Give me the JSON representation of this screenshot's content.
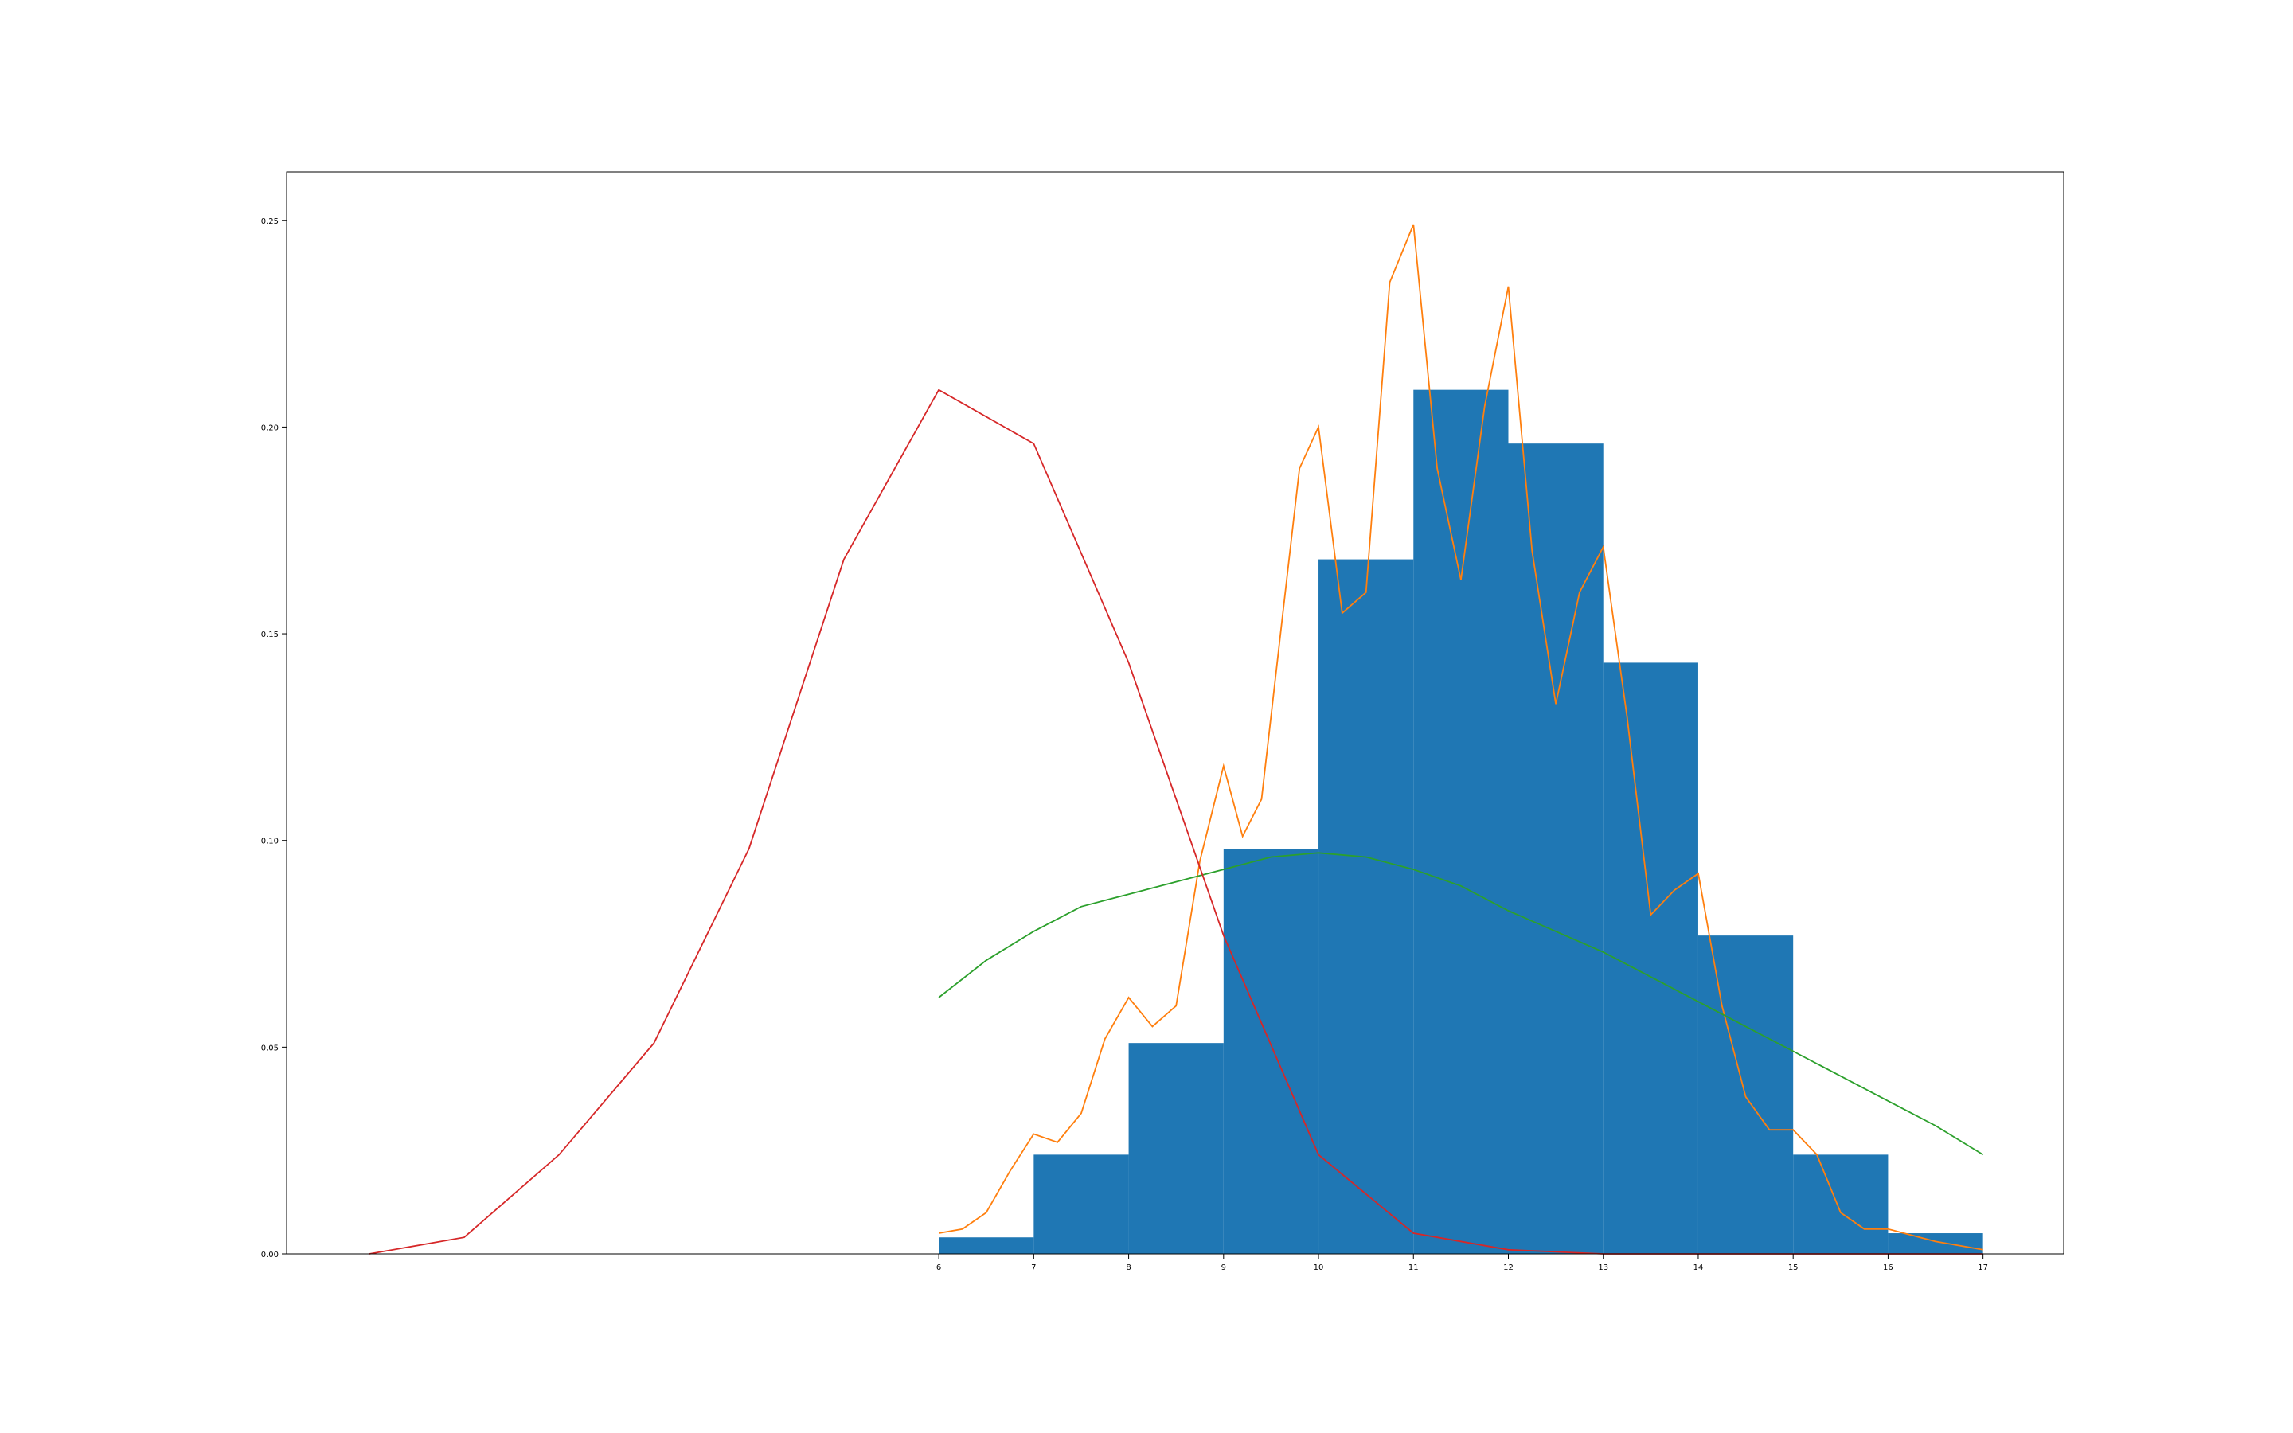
{
  "chart_data": {
    "type": "bar",
    "title": "",
    "xlabel": "",
    "ylabel": "",
    "xlim": [
      -0.87,
      17.85
    ],
    "ylim": [
      0,
      0.2617
    ],
    "grid": false,
    "x_ticks": [
      6,
      7,
      8,
      9,
      10,
      11,
      12,
      13,
      14,
      15,
      16,
      17
    ],
    "x_tick_labels": [
      "6",
      "7",
      "8",
      "9",
      "10",
      "11",
      "12",
      "13",
      "14",
      "15",
      "16",
      "17"
    ],
    "y_ticks": [
      0,
      0.05,
      0.1,
      0.15,
      0.2,
      0.25
    ],
    "y_tick_labels": [
      "0.00",
      "0.05",
      "0.10",
      "0.15",
      "0.20",
      "0.25"
    ],
    "histogram": {
      "color": "#1f77b4",
      "bin_edges": [
        6,
        7,
        8,
        9,
        10,
        11,
        12,
        13,
        14,
        15,
        16,
        17
      ],
      "values": [
        0.004,
        0.024,
        0.051,
        0.098,
        0.168,
        0.209,
        0.196,
        0.143,
        0.077,
        0.024,
        0.005
      ]
    },
    "series": [
      {
        "color": "#ff7f0e",
        "type": "line",
        "x": [
          6,
          6.25,
          6.5,
          6.75,
          7,
          7.25,
          7.5,
          7.75,
          8,
          8.25,
          8.5,
          8.75,
          9,
          9.2,
          9.4,
          9.6,
          9.8,
          10,
          10.25,
          10.5,
          10.75,
          11,
          11.25,
          11.5,
          11.75,
          12,
          12.25,
          12.5,
          12.75,
          13,
          13.25,
          13.5,
          13.75,
          14,
          14.25,
          14.5,
          14.75,
          15,
          15.25,
          15.5,
          15.75,
          16,
          16.5,
          17
        ],
        "y": [
          0.005,
          0.006,
          0.01,
          0.02,
          0.029,
          0.027,
          0.034,
          0.052,
          0.062,
          0.055,
          0.06,
          0.095,
          0.118,
          0.101,
          0.11,
          0.15,
          0.19,
          0.2,
          0.155,
          0.16,
          0.235,
          0.249,
          0.19,
          0.163,
          0.205,
          0.234,
          0.17,
          0.133,
          0.16,
          0.171,
          0.13,
          0.082,
          0.088,
          0.092,
          0.06,
          0.038,
          0.03,
          0.03,
          0.024,
          0.01,
          0.006,
          0.006,
          0.003,
          0.001
        ]
      },
      {
        "color": "#2ca02c",
        "type": "line",
        "x": [
          6,
          6.5,
          7,
          7.5,
          8,
          8.5,
          9,
          9.5,
          10,
          10.5,
          11,
          11.5,
          12,
          12.5,
          13,
          13.5,
          14,
          14.5,
          15,
          15.5,
          16,
          16.5,
          17
        ],
        "y": [
          0.062,
          0.071,
          0.078,
          0.084,
          0.087,
          0.09,
          0.093,
          0.096,
          0.097,
          0.096,
          0.093,
          0.089,
          0.083,
          0.078,
          0.073,
          0.067,
          0.061,
          0.055,
          0.049,
          0.043,
          0.037,
          0.031,
          0.024
        ]
      },
      {
        "color": "#d62728",
        "type": "line",
        "x": [
          0,
          1,
          2,
          3,
          4,
          5,
          6,
          7,
          8,
          9,
          10,
          11,
          12,
          13,
          14,
          15,
          16,
          17
        ],
        "y": [
          0.0,
          0.004,
          0.024,
          0.051,
          0.098,
          0.168,
          0.209,
          0.196,
          0.143,
          0.077,
          0.024,
          0.005,
          0.001,
          0.0,
          0.0,
          0.0,
          0.0,
          0.0
        ]
      }
    ]
  }
}
